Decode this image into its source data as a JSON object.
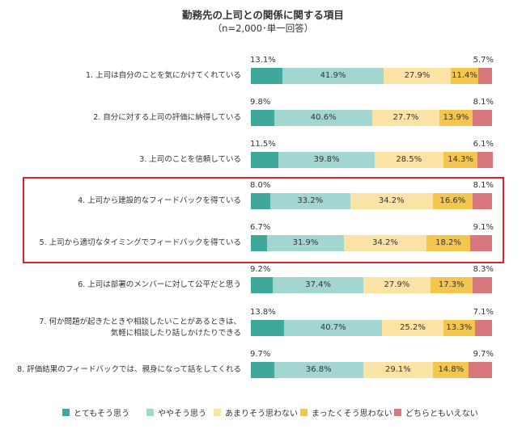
{
  "chart_data": {
    "type": "bar",
    "orientation": "horizontal-stacked-100",
    "title": "勤務先の上司との関係に関する項目",
    "subtitle": "（n=2,000･単一回答）",
    "categories": [
      [
        "1. 上司は自分のことを気にかけてくれている"
      ],
      [
        "2. 自分に対する上司の評価に納得している"
      ],
      [
        "3. 上司のことを信頼している"
      ],
      [
        "4. 上司から建設的なフィードバックを得ている"
      ],
      [
        "5. 上司から適切なタイミングでフィードバックを得ている"
      ],
      [
        "6. 上司は部署のメンバーに対して公平だと思う"
      ],
      [
        "7. 何か問題が起きたときや相談したいことがあるときは、",
        "気軽に相談したり話しかけたりできる"
      ],
      [
        "8. 評価結果のフィードバックでは、親身になって話をしてくれる"
      ]
    ],
    "series": [
      {
        "name": "とてもそう思う",
        "color": "#3fa89a",
        "values": [
          13.1,
          9.8,
          11.5,
          8.0,
          6.7,
          9.2,
          13.8,
          9.7
        ]
      },
      {
        "name": "ややそう思う",
        "color": "#a3d6d1",
        "values": [
          41.9,
          40.6,
          39.8,
          33.2,
          31.9,
          37.4,
          40.7,
          36.8
        ]
      },
      {
        "name": "あまりそう思わない",
        "color": "#fbe3a6",
        "values": [
          27.9,
          27.7,
          28.5,
          34.2,
          34.2,
          27.9,
          25.2,
          29.1
        ]
      },
      {
        "name": "まったくそう思わない",
        "color": "#f2c64f",
        "values": [
          11.4,
          13.9,
          14.3,
          16.6,
          18.2,
          17.3,
          13.3,
          14.8
        ]
      },
      {
        "name": "どちらともいえない",
        "color": "#d9777e",
        "values": [
          5.7,
          8.1,
          6.1,
          8.1,
          9.1,
          8.3,
          7.1,
          9.7
        ]
      }
    ],
    "value_suffix": "%",
    "xlim": [
      0,
      100
    ],
    "grid": false,
    "legend": "bottom",
    "highlighted_categories": [
      3,
      4
    ],
    "highlight_color": "#d9262b"
  }
}
